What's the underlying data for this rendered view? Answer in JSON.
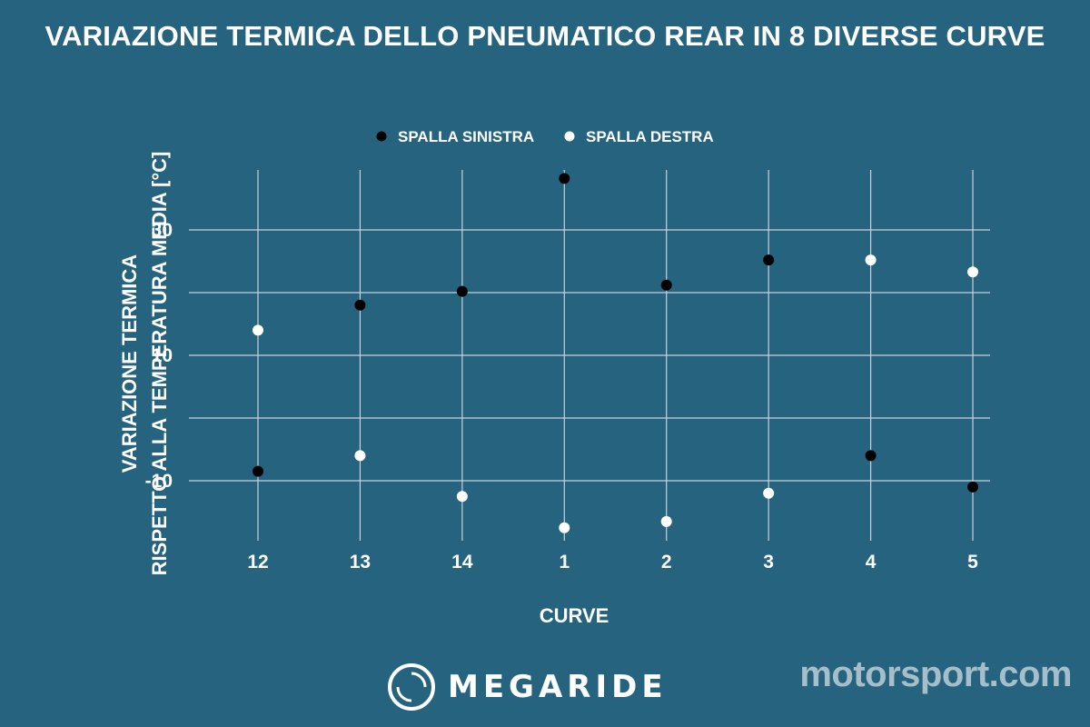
{
  "title": "VARIAZIONE TERMICA DELLO PNEUMATICO REAR IN 8 DIVERSE CURVE",
  "colors": {
    "background": "#25637e",
    "left": "#000000",
    "right": "#ffffff",
    "grid": "#c8d3da"
  },
  "brand": {
    "logo_text": "MEGARIDE",
    "watermark": "motorsport.com"
  },
  "chart_data": {
    "type": "scatter",
    "title": "VARIAZIONE TERMICA DELLO PNEUMATICO REAR IN 8 DIVERSE CURVE",
    "xlabel": "CURVE",
    "ylabel": [
      "VARIAZIONE TERMICA",
      "RISPETTO ALLA TEMPERATURA MEDIA [°C]"
    ],
    "categories": [
      "12",
      "13",
      "14",
      "1",
      "2",
      "3",
      "4",
      "5"
    ],
    "yticks": [
      30,
      10,
      -10
    ],
    "ylim": [
      -17,
      40
    ],
    "grid": true,
    "legend_position": "top",
    "series": [
      {
        "name": "SPALLA SINISTRA",
        "color": "#000000",
        "values": [
          -8.5,
          18,
          20.2,
          38.2,
          21.2,
          25.2,
          -6,
          -11
        ]
      },
      {
        "name": "SPALLA DESTRA",
        "color": "#ffffff",
        "values": [
          14,
          -6,
          -12.5,
          -17.5,
          -16.5,
          -12,
          25.2,
          23.3
        ]
      }
    ]
  }
}
